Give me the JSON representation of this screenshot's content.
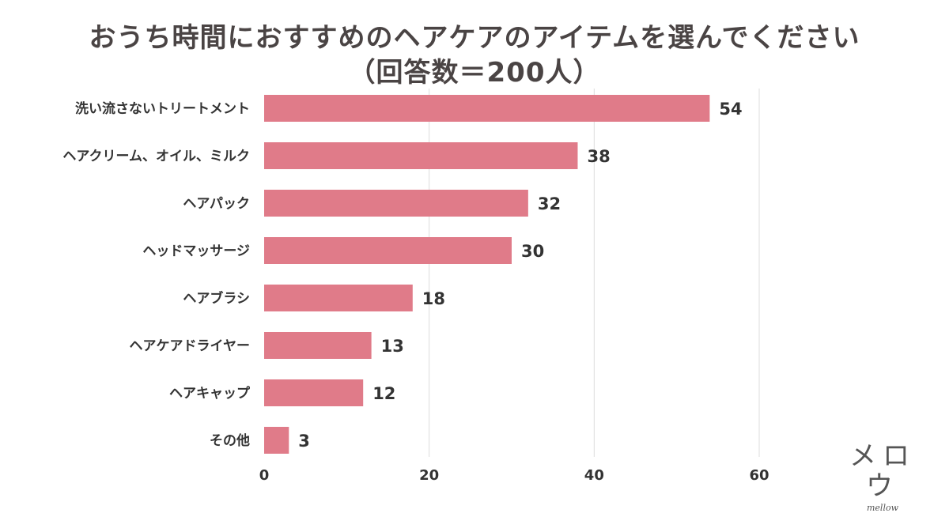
{
  "chart_data": {
    "type": "bar",
    "orientation": "horizontal",
    "title": "おうち時間におすすめのヘアケアのアイテムを選んでください",
    "subtitle": "（回答数＝200人）",
    "categories": [
      "洗い流さないトリートメント",
      "ヘアクリーム、オイル、ミルク",
      "ヘアパック",
      "ヘッドマッサージ",
      "ヘアブラシ",
      "ヘアケアドライヤー",
      "ヘアキャップ",
      "その他"
    ],
    "values": [
      54,
      38,
      32,
      30,
      18,
      13,
      12,
      3
    ],
    "xlim": [
      0,
      60
    ],
    "xticks": [
      0,
      20,
      40,
      60
    ],
    "xlabel": "",
    "ylabel": "",
    "grid": true,
    "bar_color": "#e07b89",
    "grid_color": "#dcdcdc",
    "text_color": "#333333"
  },
  "logo": {
    "text_jp": "メロウ",
    "text_en": "mellow"
  }
}
